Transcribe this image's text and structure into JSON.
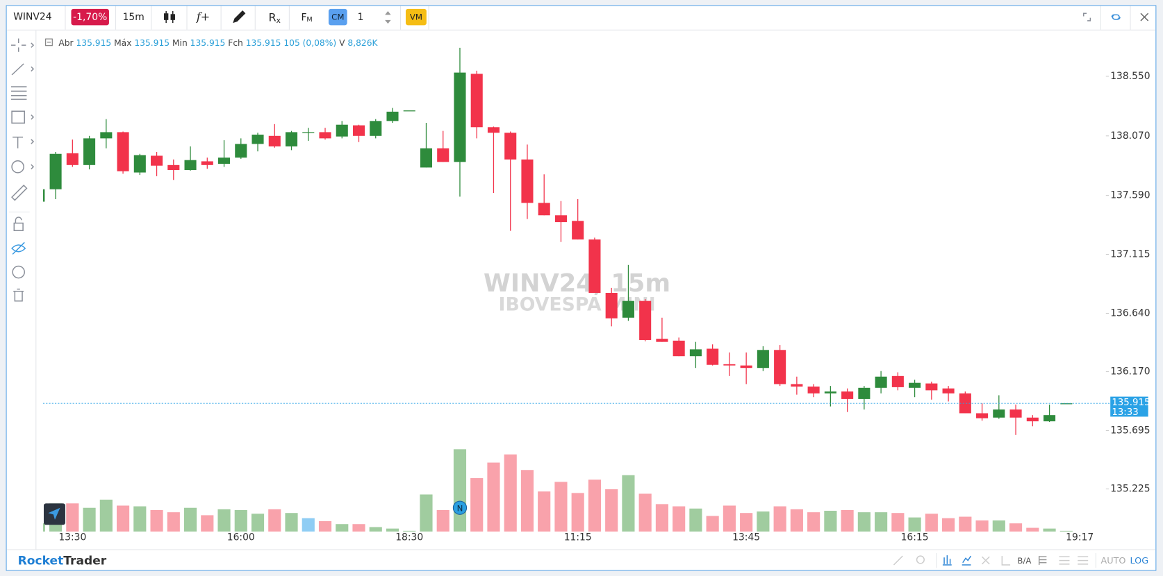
{
  "toolbar": {
    "symbol": "WINV24",
    "change": "-1,70%",
    "timeframe": "15m",
    "formula": "f+",
    "reset": "R",
    "reset_sub": "x",
    "fm": "F",
    "fm_sub": "M",
    "cm": "CM",
    "quantity": "1",
    "vm": "VM"
  },
  "chart_data": {
    "type": "candlestick",
    "watermark": "WINV24, 15m",
    "watermark_sub": "IBOVESPA MINI",
    "ohlc_legend": {
      "labels": [
        "Abr",
        "Máx",
        "Min",
        "Fch",
        "V"
      ],
      "values": [
        "135.915",
        "135.915",
        "135.915",
        "135.915 105 (0,08%)",
        "8,826K"
      ]
    },
    "categories": [
      null,
      null,
      "13:30",
      null,
      null,
      null,
      null,
      null,
      null,
      null,
      null,
      null,
      "16:00",
      null,
      null,
      null,
      null,
      null,
      null,
      null,
      null,
      null,
      "18:30",
      null,
      null,
      null,
      null,
      null,
      null,
      null,
      null,
      null,
      "11:15",
      null,
      null,
      null,
      null,
      null,
      null,
      null,
      null,
      null,
      "13:45",
      null,
      null,
      null,
      null,
      null,
      null,
      null,
      null,
      null,
      "16:15",
      null,
      null,
      null,
      null,
      null,
      null,
      null,
      null,
      null
    ],
    "time_cursor_label": "19:17",
    "open": [
      137.54,
      137.64,
      137.93,
      137.835,
      138.05,
      138.1,
      137.775,
      137.91,
      137.835,
      137.795,
      137.865,
      137.845,
      137.895,
      138.005,
      138.07,
      137.985,
      138.095,
      138.1,
      138.065,
      138.155,
      138.07,
      138.19,
      138.275,
      137.815,
      137.97,
      137.86,
      138.57,
      138.14,
      138.095,
      137.88,
      137.53,
      137.43,
      137.385,
      137.235,
      136.805,
      136.605,
      136.74,
      136.435,
      136.42,
      136.295,
      136.355,
      136.23,
      136.22,
      136.2,
      136.345,
      136.07,
      136.05,
      135.995,
      136.01,
      135.95,
      136.04,
      136.135,
      136.04,
      136.075,
      136.035,
      135.995,
      135.835,
      135.8,
      135.865,
      135.8,
      135.77,
      135.915
    ],
    "high": [
      137.64,
      137.94,
      138.04,
      138.07,
      138.205,
      138.105,
      137.925,
      137.94,
      137.88,
      137.985,
      137.895,
      138.035,
      138.05,
      138.095,
      138.165,
      138.11,
      138.135,
      138.135,
      138.19,
      138.16,
      138.205,
      138.295,
      138.275,
      138.175,
      138.11,
      138.78,
      138.595,
      138.145,
      138.105,
      138.0,
      137.76,
      137.545,
      137.56,
      137.25,
      136.845,
      137.03,
      136.755,
      136.605,
      136.445,
      136.41,
      136.39,
      136.325,
      136.325,
      136.375,
      136.385,
      136.13,
      136.07,
      136.055,
      136.035,
      136.055,
      136.175,
      136.165,
      136.105,
      136.09,
      136.055,
      136.01,
      135.915,
      135.98,
      135.905,
      135.82,
      135.905,
      135.915
    ],
    "low": [
      137.54,
      137.56,
      137.82,
      137.8,
      137.97,
      137.765,
      137.755,
      137.745,
      137.715,
      137.79,
      137.805,
      137.82,
      137.885,
      137.945,
      137.975,
      137.955,
      138.03,
      138.04,
      138.05,
      138.02,
      138.05,
      138.175,
      138.275,
      137.815,
      137.86,
      137.58,
      138.05,
      137.61,
      137.305,
      137.4,
      137.43,
      137.215,
      137.235,
      136.805,
      136.535,
      136.58,
      136.415,
      136.41,
      136.295,
      136.2,
      136.22,
      136.135,
      136.07,
      136.175,
      136.055,
      135.985,
      135.965,
      135.89,
      135.845,
      135.865,
      135.995,
      136.02,
      135.965,
      135.945,
      135.93,
      135.835,
      135.775,
      135.79,
      135.66,
      135.73,
      135.765,
      135.915
    ],
    "close": [
      137.64,
      137.925,
      137.835,
      138.05,
      138.1,
      137.785,
      137.915,
      137.83,
      137.795,
      137.875,
      137.835,
      137.895,
      138.005,
      138.08,
      137.985,
      138.1,
      138.1,
      138.05,
      138.16,
      138.07,
      138.19,
      138.265,
      138.275,
      137.97,
      137.86,
      138.58,
      138.14,
      138.095,
      137.88,
      137.53,
      137.43,
      137.375,
      137.235,
      136.805,
      136.6,
      136.74,
      136.425,
      136.41,
      136.295,
      136.35,
      136.225,
      136.22,
      136.2,
      136.345,
      136.07,
      136.05,
      135.995,
      136.01,
      135.95,
      136.04,
      136.13,
      136.045,
      136.08,
      136.02,
      135.995,
      135.835,
      135.795,
      135.865,
      135.8,
      135.77,
      135.82,
      135.915
    ],
    "volume": [
      99,
      342,
      342,
      288,
      387,
      315,
      306,
      261,
      234,
      288,
      198,
      270,
      261,
      216,
      270,
      225,
      162,
      126,
      90,
      90,
      54,
      36,
      9,
      450,
      261,
      999,
      648,
      837,
      936,
      747,
      486,
      603,
      468,
      630,
      513,
      684,
      459,
      333,
      306,
      279,
      189,
      315,
      225,
      243,
      306,
      270,
      234,
      252,
      261,
      234,
      234,
      225,
      171,
      216,
      162,
      180,
      135,
      135,
      99,
      45,
      36,
      8.826
    ],
    "volume_highlight": 16,
    "events": [
      {
        "index": 25,
        "label": "N"
      }
    ],
    "last_price": 135.915,
    "countdown": "13:33",
    "ylim": [
      134.882,
      138.914
    ],
    "yticks": [
      {
        "value": 138.55,
        "label": "138.550"
      },
      {
        "value": 138.07,
        "label": "138.070"
      },
      {
        "value": 137.59,
        "label": "137.590"
      },
      137.115,
      {
        "value": 136.64,
        "label": "136.640"
      },
      {
        "value": 136.17,
        "label": "136.170"
      },
      135.695,
      135.225
    ],
    "grid": false,
    "up_color": "#2e8b3c",
    "down_color": "#f2334b",
    "volume_up_color": "#a0cc9f",
    "volume_down_color": "#f9a2ab",
    "highlight_color": "#8fcdf4",
    "last_price_color": "#2aa2e6"
  },
  "footer": {
    "brand_a": "Rocket",
    "brand_b": "Trader",
    "ba": "B/A",
    "auto": "AUTO",
    "log": "LOG"
  }
}
